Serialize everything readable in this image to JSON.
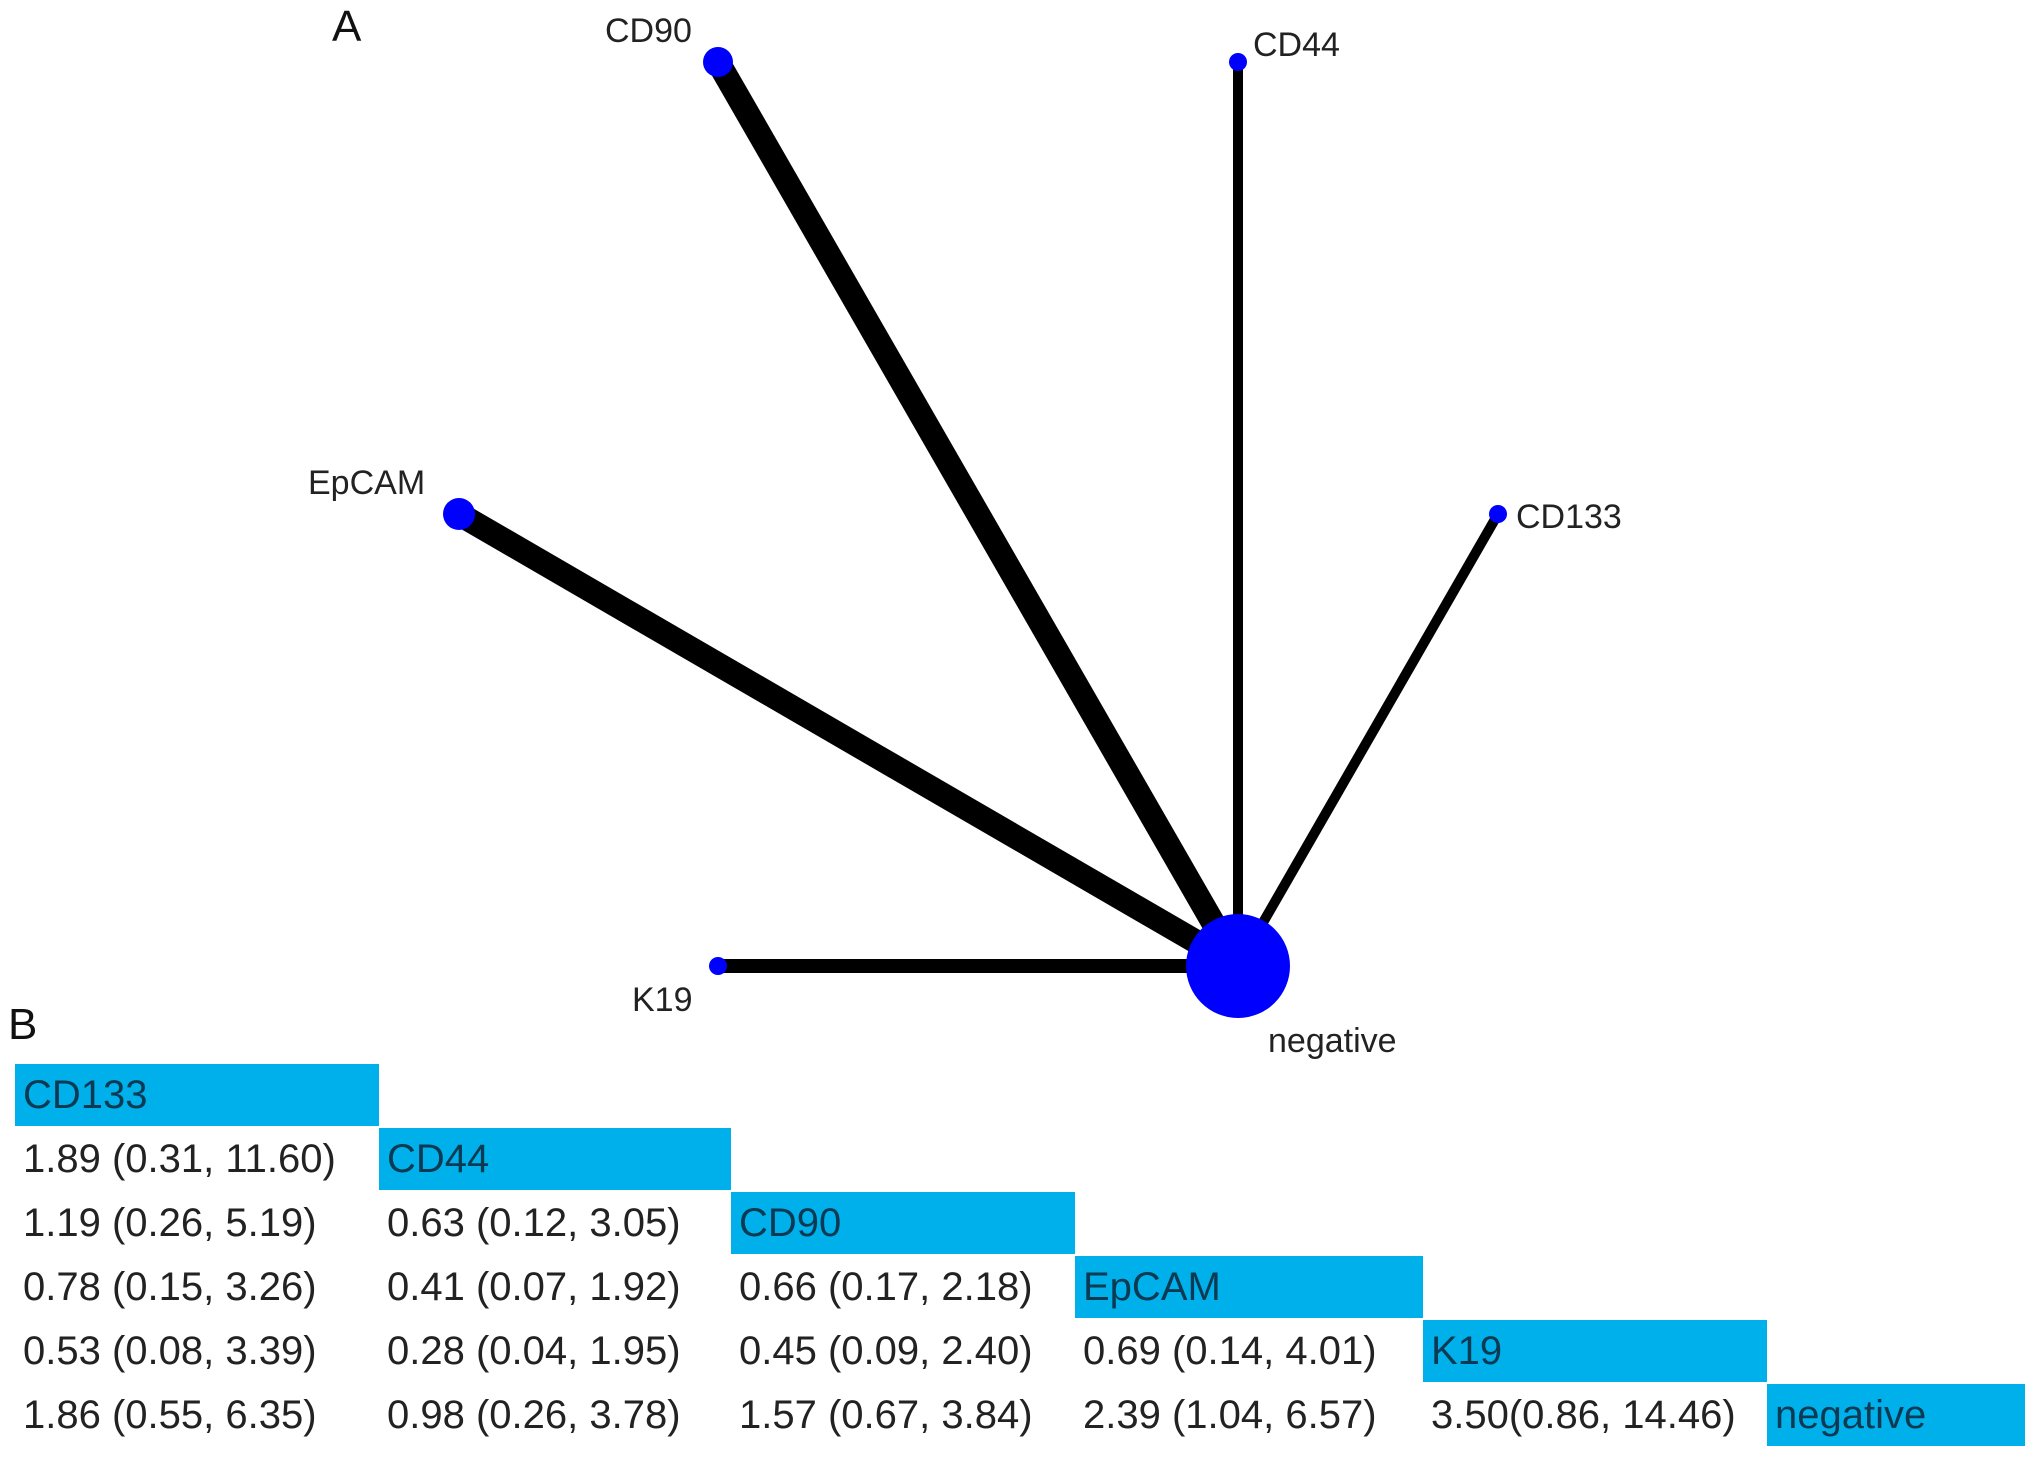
{
  "panel_a_letter": "A",
  "panel_b_letter": "B",
  "network": {
    "nodes": [
      {
        "id": "CD90",
        "label": "CD90"
      },
      {
        "id": "CD44",
        "label": "CD44"
      },
      {
        "id": "EpCAM",
        "label": "EpCAM"
      },
      {
        "id": "CD133",
        "label": "CD133"
      },
      {
        "id": "K19",
        "label": "K19"
      },
      {
        "id": "negative",
        "label": "negative"
      }
    ],
    "edges": [
      {
        "from": "CD90",
        "to": "negative"
      },
      {
        "from": "EpCAM",
        "to": "negative"
      },
      {
        "from": "CD44",
        "to": "negative"
      },
      {
        "from": "CD133",
        "to": "negative"
      },
      {
        "from": "K19",
        "to": "negative"
      }
    ],
    "node_color": "#0000ff",
    "edge_color": "#000000"
  },
  "league_table": {
    "diagonal_color": "#00b0ea",
    "treatments": [
      "CD133",
      "CD44",
      "CD90",
      "EpCAM",
      "K19",
      "negative"
    ],
    "rows": [
      [],
      [
        "1.89 (0.31, 11.60)"
      ],
      [
        "1.19 (0.26, 5.19)",
        "0.63 (0.12, 3.05)"
      ],
      [
        "0.78 (0.15, 3.26)",
        "0.41 (0.07, 1.92)",
        "0.66 (0.17, 2.18)"
      ],
      [
        "0.53 (0.08, 3.39)",
        "0.28 (0.04, 1.95)",
        "0.45 (0.09, 2.40)",
        "0.69 (0.14, 4.01)"
      ],
      [
        "1.86 (0.55, 6.35)",
        "0.98 (0.26, 3.78)",
        "1.57 (0.67, 3.84)",
        "2.39 (1.04, 6.57)",
        "3.50(0.86, 14.46)"
      ]
    ]
  }
}
